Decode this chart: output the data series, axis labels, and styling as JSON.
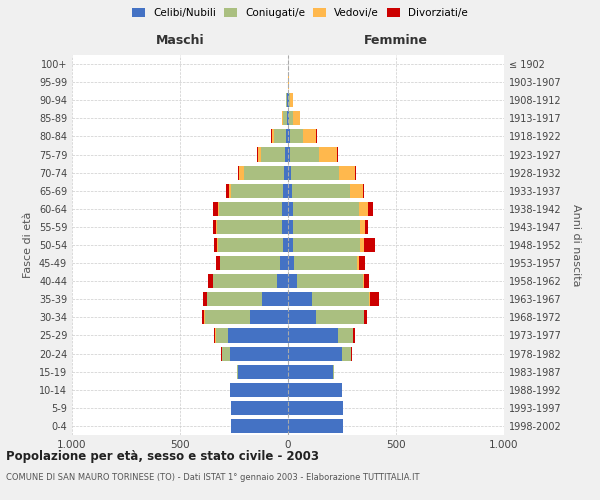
{
  "age_groups": [
    "0-4",
    "5-9",
    "10-14",
    "15-19",
    "20-24",
    "25-29",
    "30-34",
    "35-39",
    "40-44",
    "45-49",
    "50-54",
    "55-59",
    "60-64",
    "65-69",
    "70-74",
    "75-79",
    "80-84",
    "85-89",
    "90-94",
    "95-99",
    "100+"
  ],
  "birth_years": [
    "1998-2002",
    "1993-1997",
    "1988-1992",
    "1983-1987",
    "1978-1982",
    "1973-1977",
    "1968-1972",
    "1963-1967",
    "1958-1962",
    "1953-1957",
    "1948-1952",
    "1943-1947",
    "1938-1942",
    "1933-1937",
    "1928-1932",
    "1923-1927",
    "1918-1922",
    "1913-1917",
    "1908-1912",
    "1903-1907",
    "≤ 1902"
  ],
  "maschi": {
    "celibi": [
      265,
      265,
      270,
      230,
      270,
      280,
      175,
      120,
      50,
      35,
      25,
      30,
      30,
      25,
      20,
      15,
      10,
      5,
      3,
      1,
      0
    ],
    "coniugati": [
      0,
      0,
      0,
      5,
      35,
      55,
      210,
      255,
      295,
      280,
      300,
      300,
      290,
      240,
      185,
      110,
      55,
      20,
      5,
      1,
      0
    ],
    "vedovi": [
      0,
      0,
      0,
      0,
      2,
      2,
      2,
      2,
      2,
      2,
      2,
      3,
      5,
      10,
      20,
      15,
      10,
      5,
      2,
      0,
      0
    ],
    "divorziati": [
      0,
      0,
      0,
      0,
      2,
      5,
      10,
      15,
      25,
      18,
      15,
      15,
      20,
      10,
      5,
      3,
      2,
      0,
      0,
      0,
      0
    ]
  },
  "femmine": {
    "nubili": [
      255,
      255,
      250,
      210,
      250,
      230,
      130,
      110,
      40,
      30,
      25,
      25,
      25,
      20,
      15,
      10,
      10,
      5,
      3,
      1,
      0
    ],
    "coniugate": [
      0,
      0,
      0,
      5,
      40,
      70,
      220,
      265,
      305,
      290,
      310,
      310,
      305,
      265,
      220,
      135,
      60,
      20,
      5,
      1,
      0
    ],
    "vedove": [
      0,
      0,
      0,
      0,
      2,
      3,
      3,
      5,
      5,
      10,
      15,
      20,
      40,
      60,
      75,
      80,
      60,
      30,
      15,
      3,
      0
    ],
    "divorziate": [
      0,
      0,
      0,
      0,
      5,
      5,
      15,
      40,
      25,
      25,
      55,
      15,
      25,
      5,
      5,
      5,
      3,
      0,
      0,
      0,
      0
    ]
  },
  "colors": {
    "celibi_nubili": "#4472C4",
    "coniugati": "#AABF80",
    "vedovi": "#FFB84D",
    "divorziati": "#CC0000"
  },
  "xlim": 1000,
  "title": "Popolazione per età, sesso e stato civile - 2003",
  "subtitle": "COMUNE DI SAN MAURO TORINESE (TO) - Dati ISTAT 1° gennaio 2003 - Elaborazione TUTTITALIA.IT",
  "ylabel_left": "Fasce di età",
  "ylabel_right": "Anni di nascita",
  "xlabel_left": "Maschi",
  "xlabel_right": "Femmine",
  "bg_color": "#f0f0f0",
  "plot_bg": "#ffffff"
}
